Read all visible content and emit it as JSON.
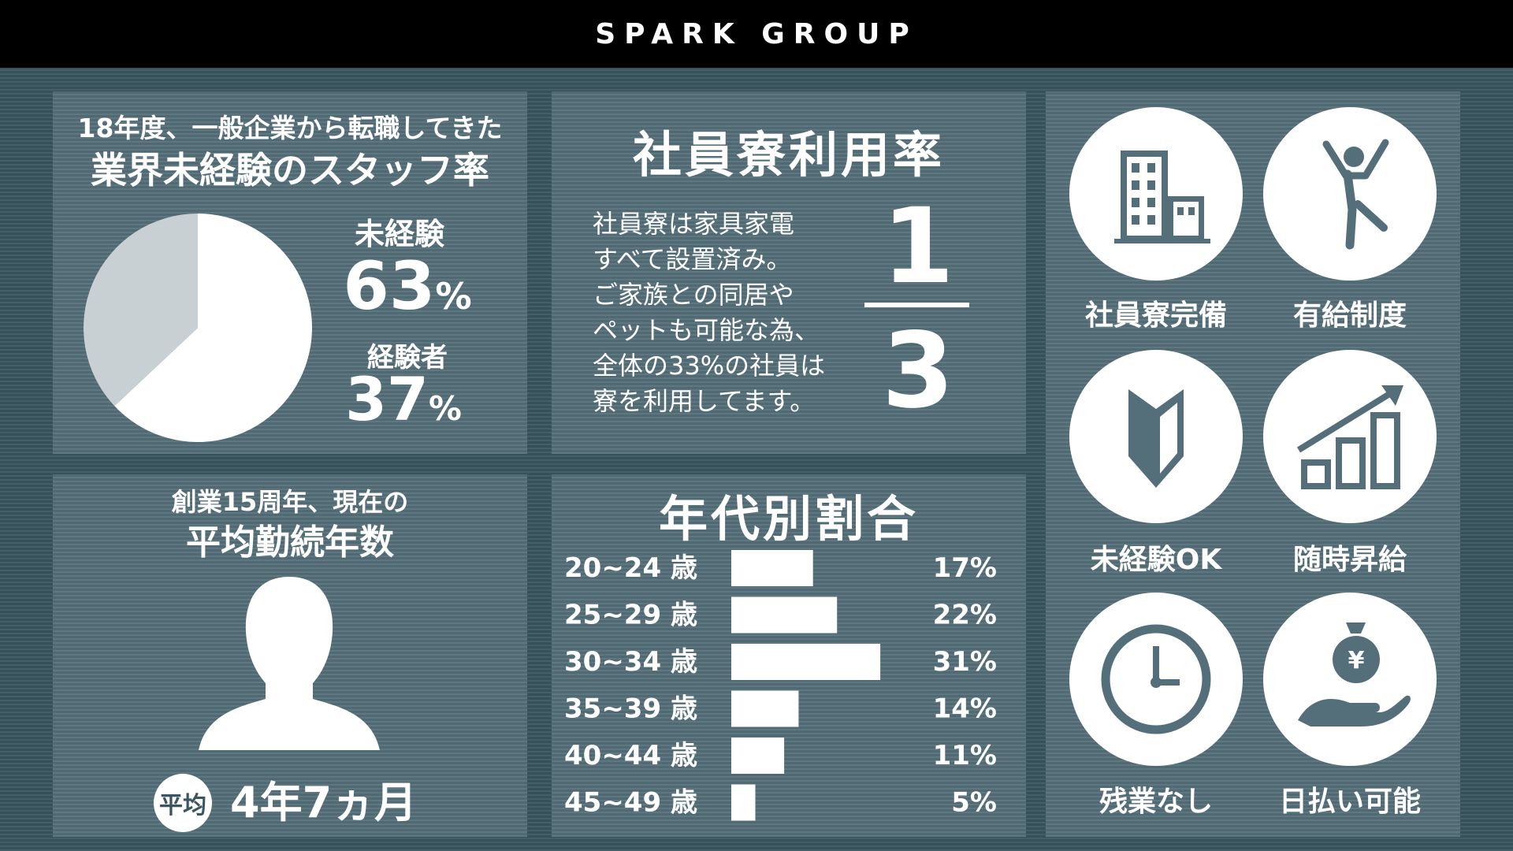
{
  "header": {
    "brand": "SPARK GROUP"
  },
  "panel_experience": {
    "subtitle": "18年度、一般企業から転職してきた",
    "title": "業界未経験のスタッフ率",
    "inexperienced_label": "未経験",
    "inexperienced_value": "63",
    "experienced_label": "経験者",
    "experienced_value": "37",
    "percent_sign": "%"
  },
  "panel_dorm": {
    "title": "社員寮利用率",
    "description": [
      "社員寮は家具家電",
      "すべて設置済み。",
      "ご家族との同居や",
      "ペットも可能な為、",
      "全体の33%の社員は",
      "寮を利用してます。"
    ],
    "numerator": "1",
    "denominator": "3"
  },
  "panel_tenure": {
    "subtitle": "創業15周年、現在の",
    "title": "平均勤続年数",
    "badge": "平均",
    "value": "4年7ヵ月"
  },
  "panel_age": {
    "title": "年代別割合"
  },
  "features": [
    {
      "label": "社員寮完備",
      "icon": "building-icon"
    },
    {
      "label": "有給制度",
      "icon": "jumping-person-icon"
    },
    {
      "label": "未経験OK",
      "icon": "beginner-mark-icon"
    },
    {
      "label": "随時昇給",
      "icon": "growth-chart-icon"
    },
    {
      "label": "残業なし",
      "icon": "clock-icon"
    },
    {
      "label": "日払い可能",
      "icon": "money-hand-icon"
    }
  ],
  "colors": {
    "background": "#3a5660",
    "panel": "#546f79",
    "header": "#000000",
    "pie_light": "#ffffff",
    "pie_gray": "#c9d0d3"
  },
  "chart_data": [
    {
      "type": "pie",
      "title": "業界未経験のスタッフ率",
      "categories": [
        "未経験",
        "経験者"
      ],
      "values": [
        63,
        37
      ]
    },
    {
      "type": "bar",
      "title": "年代別割合",
      "orientation": "horizontal",
      "categories": [
        "20~24 歳",
        "25~29 歳",
        "30~34 歳",
        "35~39 歳",
        "40~44 歳",
        "45~49 歳"
      ],
      "values": [
        17,
        22,
        31,
        14,
        11,
        5
      ],
      "value_labels": [
        "17%",
        "22%",
        "31%",
        "14%",
        "11%",
        "5%"
      ]
    }
  ]
}
